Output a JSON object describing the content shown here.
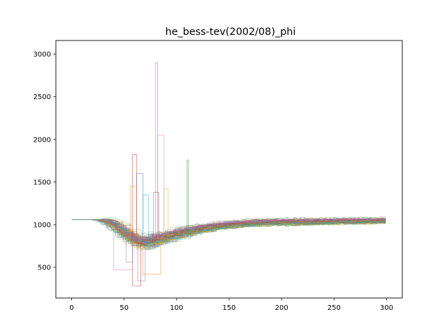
{
  "chart_data": {
    "type": "line",
    "title": "he_bess-tev(2002/08)_phi",
    "xlabel": "",
    "ylabel": "",
    "xlim": [
      -15,
      315
    ],
    "ylim": [
      140,
      3160
    ],
    "x_ticks": [
      0,
      50,
      100,
      150,
      200,
      250,
      300
    ],
    "x_tick_labels": [
      "0",
      "50",
      "100",
      "150",
      "200",
      "250",
      "300"
    ],
    "y_ticks": [
      500,
      1000,
      1500,
      2000,
      2500,
      3000
    ],
    "y_tick_labels": [
      "500",
      "1000",
      "1500",
      "2000",
      "2500",
      "3000"
    ],
    "grid": false,
    "legend": "none",
    "series_count": 100,
    "x_range": [
      0,
      299
    ],
    "series_colors": [
      "#1f77b4",
      "#ff7f0e",
      "#2ca02c",
      "#d62728",
      "#9467bd",
      "#8c564b",
      "#e377c2",
      "#7f7f7f",
      "#bcbd22",
      "#17becf"
    ],
    "line_alpha": 0.4,
    "curve_profile": {
      "start_value": 1060,
      "flat_until_x": 25,
      "dip_min_x": 70,
      "dip_min_value": 790,
      "dip_spread": 110,
      "recovery_to_x": 200,
      "plateau_value": 1030,
      "end_value": 1050,
      "end_spread": 45
    },
    "spikes": [
      {
        "x_start": 80,
        "x_end": 82,
        "value": 2900,
        "color": "#9467bd"
      },
      {
        "x_start": 82,
        "x_end": 88,
        "value": 2050,
        "color": "#e377c2"
      },
      {
        "x_start": 58,
        "x_end": 62,
        "value": 1820,
        "color": "#d62728"
      },
      {
        "x_start": 110,
        "x_end": 111,
        "value": 1760,
        "color": "#2ca02c"
      },
      {
        "x_start": 62,
        "x_end": 68,
        "value": 1600,
        "color": "#1f77b4"
      },
      {
        "x_start": 56,
        "x_end": 62,
        "value": 1450,
        "color": "#ff7f0e"
      },
      {
        "x_start": 78,
        "x_end": 83,
        "value": 1380,
        "color": "#8c564b"
      },
      {
        "x_start": 68,
        "x_end": 73,
        "value": 1350,
        "color": "#17becf"
      },
      {
        "x_start": 88,
        "x_end": 92,
        "value": 1420,
        "color": "#bcbd22"
      },
      {
        "x_start": 58,
        "x_end": 66,
        "value": 280,
        "color": "#d62728"
      },
      {
        "x_start": 63,
        "x_end": 70,
        "value": 340,
        "color": "#9467bd"
      },
      {
        "x_start": 40,
        "x_end": 58,
        "value": 470,
        "color": "#e377c2"
      },
      {
        "x_start": 68,
        "x_end": 85,
        "value": 420,
        "color": "#ff7f0e"
      },
      {
        "x_start": 52,
        "x_end": 58,
        "value": 560,
        "color": "#7f7f7f"
      }
    ]
  }
}
